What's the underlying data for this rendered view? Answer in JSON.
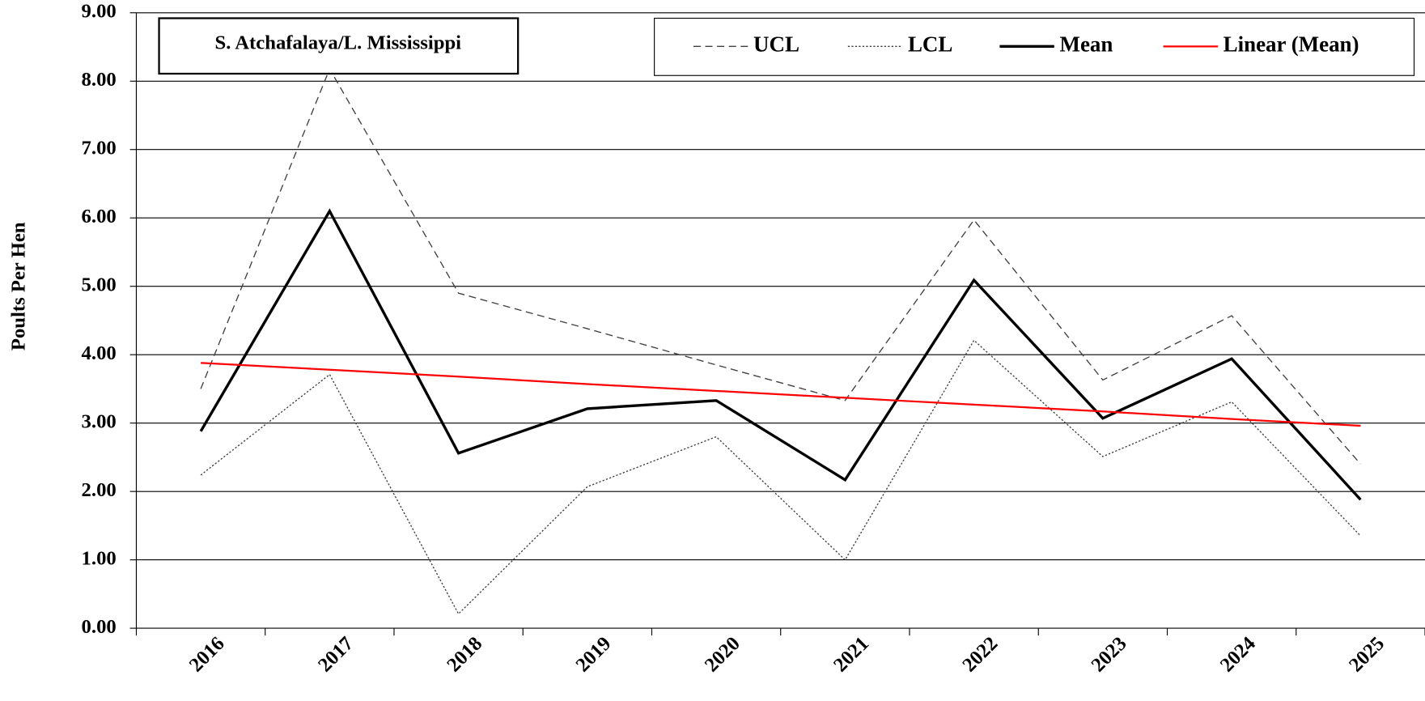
{
  "chart_data": {
    "type": "line",
    "title": "S. Atchafalaya/L. Mississippi",
    "y_label": "Poults Per Hen",
    "categories": [
      "2016",
      "2017",
      "2018",
      "2019",
      "2020",
      "2021",
      "2022",
      "2023",
      "2024",
      "2025"
    ],
    "series": [
      {
        "name": "UCL",
        "color": "#404040",
        "dash": "dashed",
        "values": [
          3.5,
          8.18,
          4.9,
          4.38,
          3.85,
          3.33,
          5.97,
          3.63,
          4.57,
          2.4
        ]
      },
      {
        "name": "LCL",
        "color": "#404040",
        "dash": "dotted",
        "values": [
          2.24,
          3.71,
          0.21,
          2.07,
          2.8,
          1.0,
          4.21,
          2.51,
          3.31,
          1.35
        ]
      },
      {
        "name": "Mean",
        "color": "#000000",
        "dash": "solid",
        "values": [
          2.88,
          6.1,
          2.56,
          3.21,
          3.33,
          2.17,
          5.09,
          3.07,
          3.94,
          1.88
        ]
      },
      {
        "name": "Linear (Mean)",
        "color": "#ff0000",
        "dash": "solid",
        "values": [
          3.88,
          3.78,
          3.68,
          3.57,
          3.47,
          3.37,
          3.27,
          3.17,
          3.06,
          2.96
        ]
      }
    ],
    "ylim": [
      0,
      9
    ],
    "yticks": [
      {
        "value": 0,
        "label": "0.00"
      },
      {
        "value": 1,
        "label": "1.00"
      },
      {
        "value": 2,
        "label": "2.00"
      },
      {
        "value": 3,
        "label": "3.00"
      },
      {
        "value": 4,
        "label": "4.00"
      },
      {
        "value": 5,
        "label": "5.00"
      },
      {
        "value": 6,
        "label": "6.00"
      },
      {
        "value": 7,
        "label": "7.00"
      },
      {
        "value": 8,
        "label": "8.00"
      },
      {
        "value": 9,
        "label": "9.00"
      }
    ],
    "grid": true,
    "legend": "top-right"
  }
}
